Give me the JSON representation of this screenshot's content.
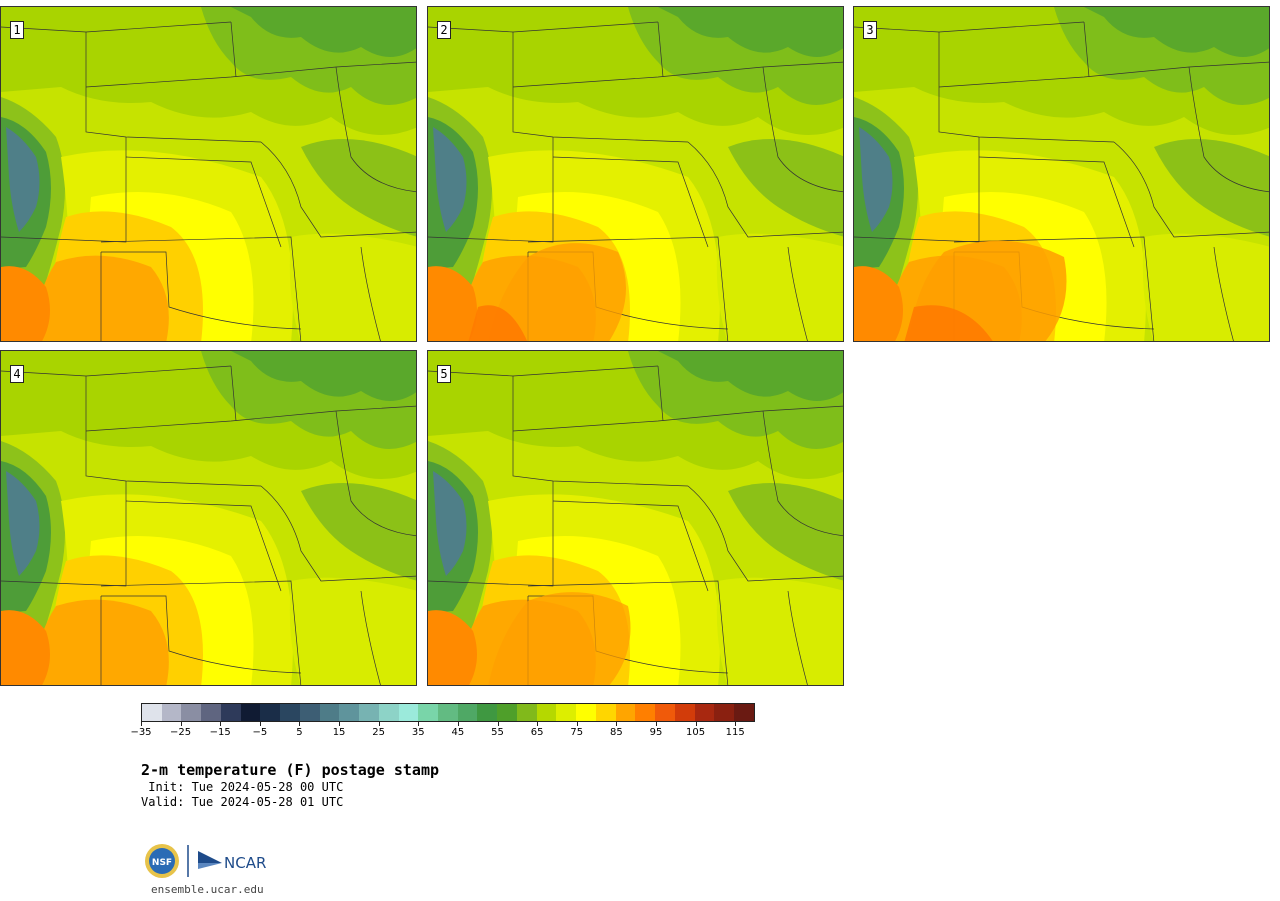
{
  "panels": [
    {
      "label": "1"
    },
    {
      "label": "2"
    },
    {
      "label": "3"
    },
    {
      "label": "4"
    },
    {
      "label": "5"
    }
  ],
  "colorbar": {
    "colors": [
      "#dfe3eb",
      "#b4b7c8",
      "#8a8ea3",
      "#5f6580",
      "#2e3a5a",
      "#101b33",
      "#1a2d48",
      "#2a4660",
      "#3d5e74",
      "#4e7c88",
      "#5f949c",
      "#77b3b2",
      "#8dd3c7",
      "#9beadb",
      "#79d5a9",
      "#62bb82",
      "#4fa865",
      "#3f9841",
      "#4f9f2a",
      "#81b91b",
      "#b5d800",
      "#ddee00",
      "#ffff00",
      "#ffd600",
      "#ffa500",
      "#ff7f00",
      "#f05a0a",
      "#d23c0a",
      "#a82810",
      "#8a2010",
      "#6a1a12"
    ],
    "tick_values": [
      "−35",
      "−25",
      "−15",
      "−5",
      "5",
      "15",
      "25",
      "35",
      "45",
      "55",
      "65",
      "75",
      "85",
      "95",
      "105",
      "115"
    ],
    "min": -35,
    "max": 120
  },
  "title": "2-m temperature (F) postage stamp",
  "init": " Init: Tue 2024-05-28 00 UTC",
  "valid": "Valid: Tue 2024-05-28 01 UTC",
  "website": "ensemble.ucar.edu",
  "logos": {
    "nsf": "NSF",
    "ncar": "NCAR"
  }
}
